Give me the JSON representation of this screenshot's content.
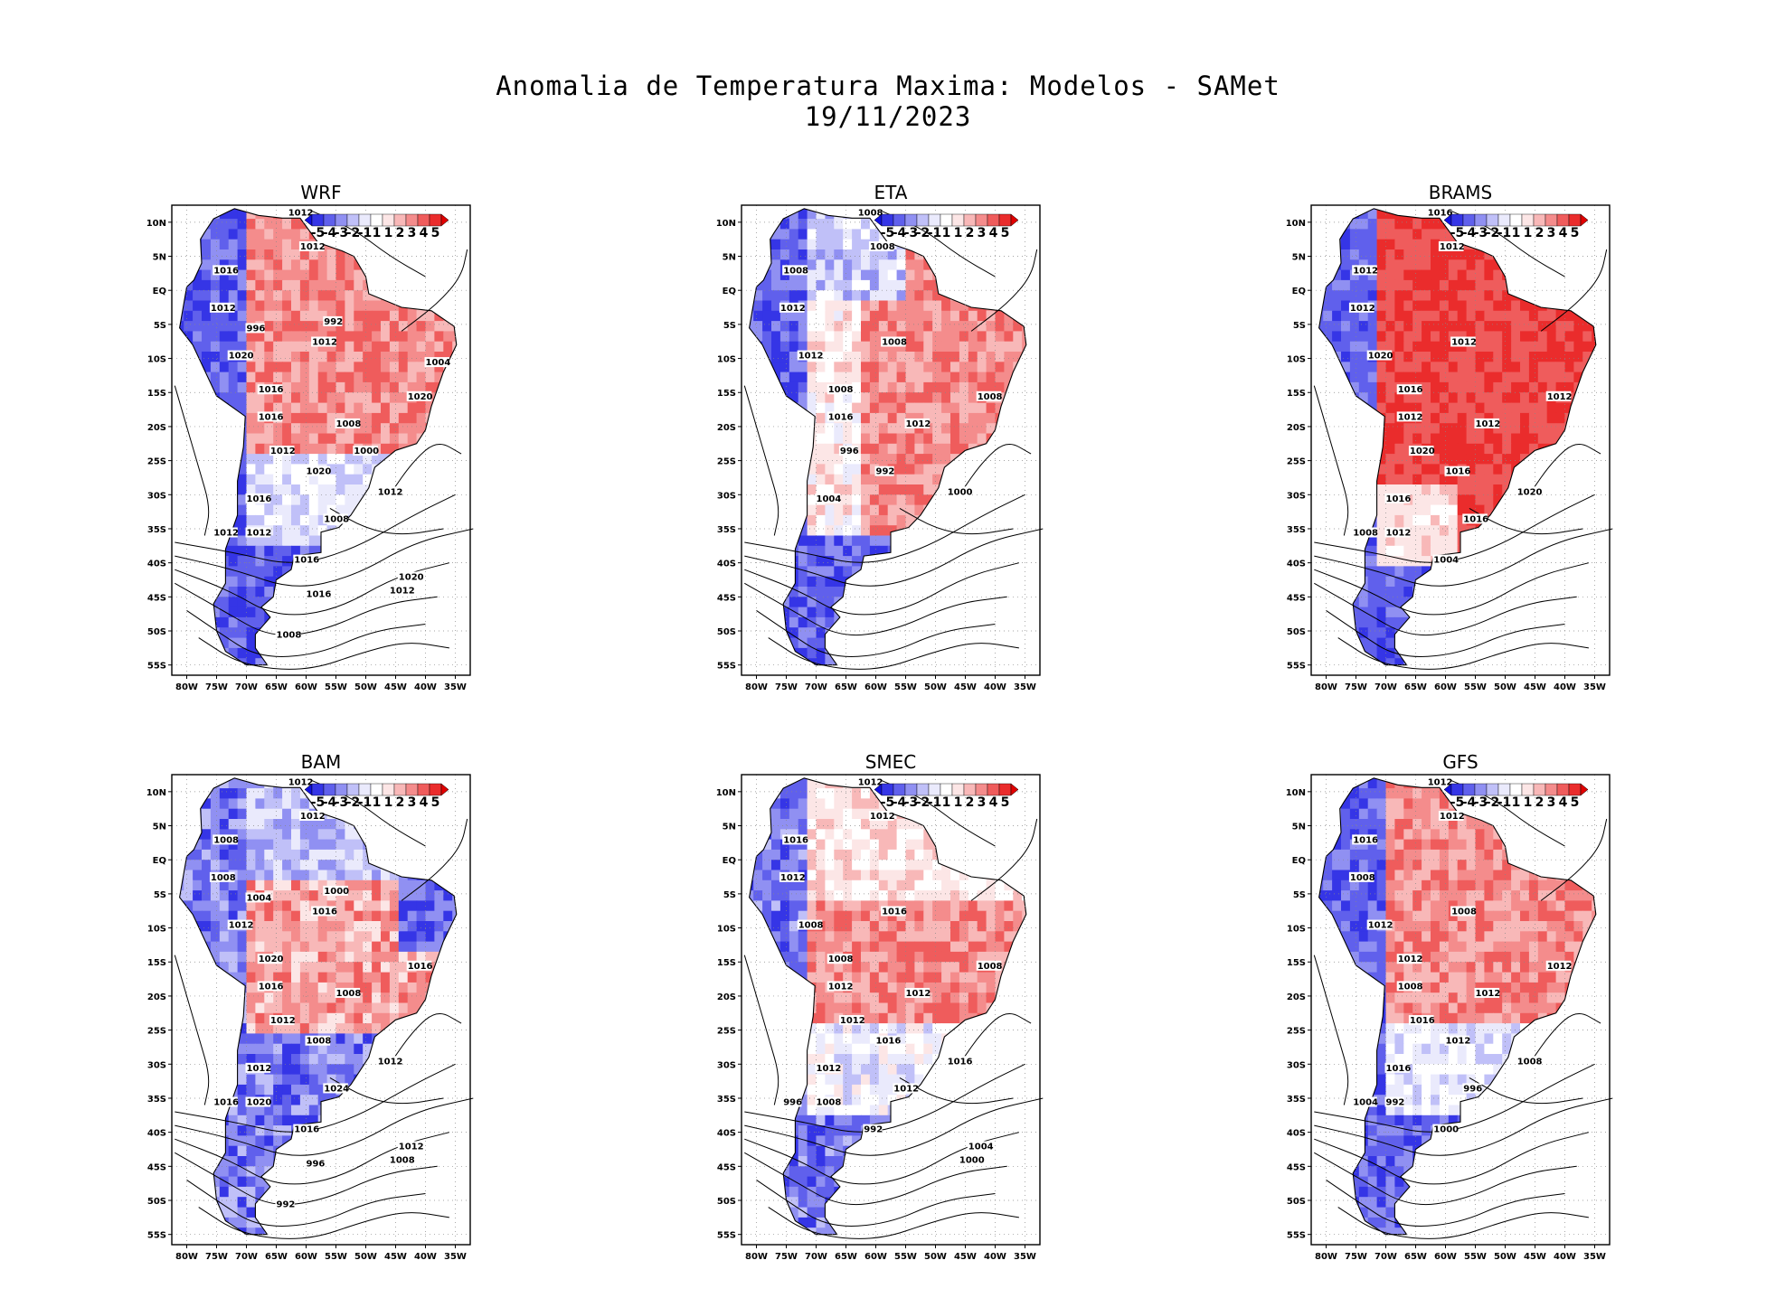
{
  "title_line1": "Anomalia de Temperatura Maxima: Modelos - SAMet",
  "title_line2": "19/11/2023",
  "lat_labels": [
    "10N",
    "5N",
    "EQ",
    "5S",
    "10S",
    "15S",
    "20S",
    "25S",
    "30S",
    "35S",
    "40S",
    "45S",
    "50S",
    "55S"
  ],
  "lon_labels": [
    "80W",
    "75W",
    "70W",
    "65W",
    "60W",
    "55W",
    "50W",
    "45W",
    "40W",
    "35W"
  ],
  "colorbar": {
    "labels": [
      "-5",
      "-4",
      "-3",
      "-2",
      "-1",
      "1",
      "1",
      "2",
      "3",
      "4",
      "5"
    ],
    "colors": [
      "#1010e0",
      "#3535e6",
      "#6060ec",
      "#9090f2",
      "#c0c0f8",
      "#eaeafc",
      "#ffffff",
      "#fce6e6",
      "#f8b8b8",
      "#f48c8c",
      "#ef5c5c",
      "#ea2c2c",
      "#e00000"
    ]
  },
  "panels": [
    {
      "name": "WRF",
      "pattern": "red-dominant",
      "isobars": [
        "1012",
        "1012",
        "1016",
        "1012",
        "1012",
        "1020",
        "1016",
        "1016",
        "1008",
        "1020",
        "1012",
        "1020",
        "1016",
        "1012",
        "1008",
        "1012",
        "1012",
        "1016",
        "1020",
        "1012",
        "1016",
        "1008",
        "996",
        "992",
        "1004",
        "1000"
      ]
    },
    {
      "name": "ETA",
      "pattern": "red-east",
      "isobars": [
        "1008",
        "1008",
        "1008",
        "1012",
        "1008",
        "1012",
        "1008",
        "1016",
        "1012",
        "1008",
        "996",
        "992",
        "1004",
        "1000"
      ]
    },
    {
      "name": "BRAMS",
      "pattern": "strong-red",
      "isobars": [
        "1016",
        "1012",
        "1012",
        "1012",
        "1012",
        "1020",
        "1016",
        "1012",
        "1012",
        "1012",
        "1020",
        "1016",
        "1016",
        "1020",
        "1016",
        "1012",
        "1008",
        "1004"
      ]
    },
    {
      "name": "BAM",
      "pattern": "mixed-blue-east",
      "isobars": [
        "1012",
        "1012",
        "1008",
        "1008",
        "1016",
        "1012",
        "1020",
        "1016",
        "1008",
        "1016",
        "1012",
        "1008",
        "1012",
        "1012",
        "1024",
        "1020",
        "1016",
        "1016",
        "1012",
        "1008",
        "996",
        "992",
        "1004",
        "1000"
      ]
    },
    {
      "name": "SMEC",
      "pattern": "mixed-red",
      "isobars": [
        "1012",
        "1012",
        "1016",
        "1012",
        "1016",
        "1008",
        "1008",
        "1012",
        "1012",
        "1008",
        "1012",
        "1016",
        "1012",
        "1016",
        "1012",
        "1008",
        "996",
        "992",
        "1004",
        "1000"
      ]
    },
    {
      "name": "GFS",
      "pattern": "red-dominant",
      "isobars": [
        "1012",
        "1012",
        "1016",
        "1008",
        "1008",
        "1012",
        "1012",
        "1008",
        "1012",
        "1012",
        "1016",
        "1012",
        "1016",
        "1008",
        "996",
        "992",
        "1004",
        "1000"
      ]
    }
  ]
}
